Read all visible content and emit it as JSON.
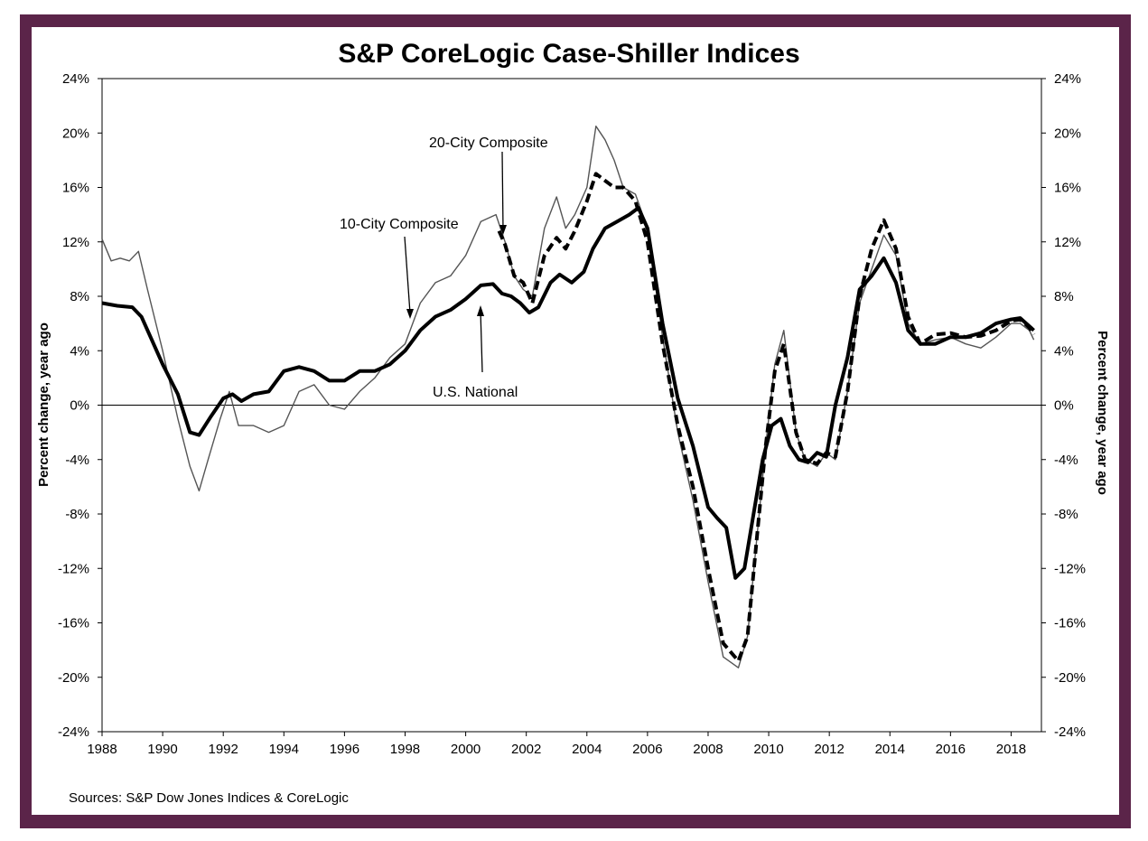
{
  "chart_data": {
    "type": "line",
    "title": "S&P CoreLogic Case-Shiller Indices",
    "ylabel_left": "Percent change, year ago",
    "ylabel_right": "Percent change, year ago",
    "xlabel": "",
    "xlim": [
      1988,
      2019
    ],
    "ylim": [
      -24,
      24
    ],
    "y_ticks": [
      -24,
      -20,
      -16,
      -12,
      -8,
      -4,
      0,
      4,
      8,
      12,
      16,
      20,
      24
    ],
    "y_tick_labels": [
      "-24%",
      "-20%",
      "-16%",
      "-12%",
      "-8%",
      "-4%",
      "0%",
      "4%",
      "8%",
      "12%",
      "16%",
      "20%",
      "24%"
    ],
    "x_ticks": [
      1988,
      1990,
      1992,
      1994,
      1996,
      1998,
      2000,
      2002,
      2004,
      2006,
      2008,
      2010,
      2012,
      2014,
      2016,
      2018
    ],
    "x_tick_labels": [
      "1988",
      "1990",
      "1992",
      "1994",
      "1996",
      "1998",
      "2000",
      "2002",
      "2004",
      "2006",
      "2008",
      "2010",
      "2012",
      "2014",
      "2016",
      "2018"
    ],
    "grid": false,
    "zero_line": true,
    "series": [
      {
        "name": "10-City Composite",
        "style": "thin-solid",
        "color": "#555555",
        "x": [
          1988.0,
          1988.3,
          1988.6,
          1988.9,
          1989.2,
          1989.5,
          1990.0,
          1990.5,
          1990.9,
          1991.2,
          1991.5,
          1991.9,
          1992.2,
          1992.5,
          1993.0,
          1993.5,
          1994.0,
          1994.5,
          1995.0,
          1995.5,
          1996.0,
          1996.5,
          1997.0,
          1997.5,
          1998.0,
          1998.5,
          1999.0,
          1999.5,
          2000.0,
          2000.5,
          2001.0,
          2001.3,
          2001.6,
          2001.9,
          2002.2,
          2002.6,
          2003.0,
          2003.3,
          2003.6,
          2004.0,
          2004.3,
          2004.6,
          2004.9,
          2005.2,
          2005.6,
          2006.0,
          2006.5,
          2007.0,
          2007.5,
          2008.0,
          2008.5,
          2009.0,
          2009.3,
          2009.6,
          2009.9,
          2010.2,
          2010.5,
          2010.9,
          2011.2,
          2011.6,
          2011.9,
          2012.2,
          2012.6,
          2013.0,
          2013.4,
          2013.8,
          2014.2,
          2014.6,
          2015.0,
          2015.5,
          2016.0,
          2016.5,
          2017.0,
          2017.5,
          2018.0,
          2018.3,
          2018.6,
          2018.75
        ],
        "y": [
          12.2,
          10.6,
          10.8,
          10.6,
          11.3,
          8.5,
          4.0,
          -1.0,
          -4.5,
          -6.3,
          -4.0,
          -1.0,
          1.0,
          -1.5,
          -1.5,
          -2.0,
          -1.5,
          1.0,
          1.5,
          0.0,
          -0.3,
          1.0,
          2.0,
          3.5,
          4.5,
          7.5,
          9.0,
          9.5,
          11.0,
          13.5,
          14.0,
          12.0,
          9.5,
          8.5,
          8.0,
          13.0,
          15.3,
          13.0,
          14.0,
          16.0,
          20.5,
          19.5,
          18.0,
          16.0,
          15.5,
          13.0,
          5.0,
          -2.0,
          -7.0,
          -13.0,
          -18.5,
          -19.3,
          -17.0,
          -10.0,
          -3.0,
          3.0,
          5.5,
          -2.0,
          -4.0,
          -4.5,
          -3.5,
          -4.0,
          1.0,
          7.5,
          10.0,
          12.5,
          11.0,
          6.0,
          4.5,
          4.8,
          5.0,
          4.5,
          4.2,
          5.0,
          6.0,
          6.0,
          5.5,
          4.8
        ]
      },
      {
        "name": "20-City Composite",
        "style": "dashed",
        "color": "#000000",
        "x": [
          2001.1,
          2001.3,
          2001.6,
          2001.9,
          2002.2,
          2002.6,
          2003.0,
          2003.3,
          2003.6,
          2004.0,
          2004.3,
          2004.6,
          2004.9,
          2005.2,
          2005.6,
          2006.0,
          2006.5,
          2007.0,
          2007.5,
          2008.0,
          2008.5,
          2009.0,
          2009.3,
          2009.6,
          2009.9,
          2010.2,
          2010.5,
          2010.9,
          2011.2,
          2011.6,
          2011.9,
          2012.2,
          2012.6,
          2013.0,
          2013.4,
          2013.8,
          2014.2,
          2014.6,
          2015.0,
          2015.5,
          2016.0,
          2016.5,
          2017.0,
          2017.5,
          2018.0,
          2018.3,
          2018.6,
          2018.75
        ],
        "y": [
          12.8,
          11.8,
          9.5,
          9.0,
          7.5,
          11.0,
          12.3,
          11.5,
          12.8,
          15.0,
          17.0,
          16.5,
          16.0,
          16.0,
          15.0,
          12.0,
          4.5,
          -1.5,
          -6.0,
          -12.0,
          -17.5,
          -18.8,
          -17.0,
          -10.0,
          -3.0,
          2.5,
          4.5,
          -2.0,
          -4.0,
          -4.3,
          -3.5,
          -3.8,
          1.0,
          8.0,
          11.5,
          13.6,
          11.5,
          6.5,
          4.5,
          5.2,
          5.3,
          5.0,
          5.1,
          5.5,
          6.2,
          6.3,
          5.7,
          5.2
        ]
      },
      {
        "name": "U.S. National",
        "style": "thick-solid",
        "color": "#000000",
        "x": [
          1988.0,
          1988.5,
          1989.0,
          1989.3,
          1989.6,
          1990.0,
          1990.5,
          1990.9,
          1991.2,
          1991.6,
          1992.0,
          1992.3,
          1992.6,
          1993.0,
          1993.5,
          1994.0,
          1994.5,
          1995.0,
          1995.5,
          1996.0,
          1996.5,
          1997.0,
          1997.5,
          1998.0,
          1998.5,
          1999.0,
          1999.5,
          2000.0,
          2000.5,
          2000.9,
          2001.2,
          2001.5,
          2001.8,
          2002.1,
          2002.4,
          2002.8,
          2003.1,
          2003.5,
          2003.9,
          2004.2,
          2004.6,
          2005.0,
          2005.4,
          2005.7,
          2006.0,
          2006.5,
          2007.0,
          2007.5,
          2008.0,
          2008.3,
          2008.6,
          2008.9,
          2009.2,
          2009.5,
          2009.8,
          2010.1,
          2010.4,
          2010.7,
          2011.0,
          2011.3,
          2011.6,
          2011.9,
          2012.2,
          2012.6,
          2013.0,
          2013.4,
          2013.8,
          2014.2,
          2014.6,
          2015.0,
          2015.5,
          2016.0,
          2016.5,
          2017.0,
          2017.5,
          2018.0,
          2018.3,
          2018.6,
          2018.75
        ],
        "y": [
          7.5,
          7.3,
          7.2,
          6.5,
          5.0,
          3.0,
          0.8,
          -2.0,
          -2.2,
          -0.8,
          0.5,
          0.8,
          0.3,
          0.8,
          1.0,
          2.5,
          2.8,
          2.5,
          1.8,
          1.8,
          2.5,
          2.5,
          3.0,
          4.0,
          5.5,
          6.5,
          7.0,
          7.8,
          8.8,
          8.9,
          8.2,
          8.0,
          7.5,
          6.8,
          7.2,
          9.0,
          9.6,
          9.0,
          9.8,
          11.5,
          13.0,
          13.5,
          14.0,
          14.5,
          13.0,
          6.0,
          0.5,
          -3.0,
          -7.5,
          -8.3,
          -9.0,
          -12.7,
          -12.0,
          -8.0,
          -4.0,
          -1.5,
          -1.0,
          -3.0,
          -4.0,
          -4.2,
          -3.5,
          -3.8,
          0.0,
          3.5,
          8.5,
          9.5,
          10.8,
          9.0,
          5.5,
          4.5,
          4.5,
          5.0,
          5.0,
          5.3,
          6.0,
          6.3,
          6.4,
          5.8,
          5.5
        ]
      }
    ],
    "annotations": [
      {
        "label": "20-City Composite",
        "series": "20-City Composite"
      },
      {
        "label": "10-City Composite",
        "series": "10-City Composite"
      },
      {
        "label": "U.S. National",
        "series": "U.S. National"
      }
    ]
  },
  "footer": {
    "source": "Sources: S&P Dow Jones Indices & CoreLogic"
  },
  "colors": {
    "frame": "#5b2449",
    "background": "#ffffff"
  }
}
